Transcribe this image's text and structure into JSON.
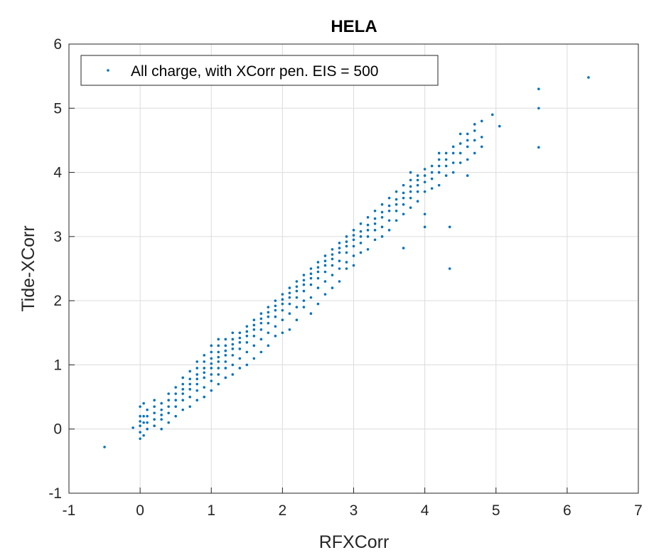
{
  "chart_data": {
    "type": "scatter",
    "title": "HELA",
    "xlabel": "RFXCorr",
    "ylabel": "Tide-XCorr",
    "xlim": [
      -1,
      7
    ],
    "ylim": [
      -1,
      6
    ],
    "xticks": [
      "-1",
      "0",
      "1",
      "2",
      "3",
      "4",
      "5",
      "6",
      "7"
    ],
    "yticks": [
      "-1",
      "0",
      "1",
      "2",
      "3",
      "4",
      "5",
      "6"
    ],
    "grid": true,
    "legend": {
      "placement": "top-left",
      "entries": [
        "All charge, with XCorr pen. EIS = 500"
      ]
    },
    "series": [
      {
        "name": "All charge, with XCorr pen. EIS = 500",
        "color": "#0072BD",
        "columns": [
          [
            0.0,
            [
              -0.15,
              -0.05,
              0.05,
              0.12,
              0.2,
              0.35
            ]
          ],
          [
            0.05,
            [
              -0.1,
              0.1,
              0.2,
              0.4
            ]
          ],
          [
            0.1,
            [
              0.0,
              0.1,
              0.2,
              0.3
            ]
          ],
          [
            0.2,
            [
              0.05,
              0.15,
              0.25,
              0.35,
              0.45
            ]
          ],
          [
            0.3,
            [
              0.0,
              0.15,
              0.22,
              0.3,
              0.4
            ]
          ],
          [
            0.4,
            [
              0.1,
              0.25,
              0.35,
              0.45,
              0.55
            ]
          ],
          [
            0.5,
            [
              0.2,
              0.35,
              0.45,
              0.55,
              0.65
            ]
          ],
          [
            0.6,
            [
              0.3,
              0.45,
              0.55,
              0.62,
              0.7,
              0.8
            ]
          ],
          [
            0.7,
            [
              0.35,
              0.5,
              0.62,
              0.7,
              0.78,
              0.9
            ]
          ],
          [
            0.8,
            [
              0.45,
              0.6,
              0.7,
              0.78,
              0.85,
              0.95,
              1.05
            ]
          ],
          [
            0.9,
            [
              0.5,
              0.65,
              0.8,
              0.88,
              0.95,
              1.05,
              1.15
            ]
          ],
          [
            1.0,
            [
              0.6,
              0.75,
              0.85,
              0.95,
              1.02,
              1.1,
              1.2,
              1.3
            ]
          ],
          [
            1.1,
            [
              0.7,
              0.85,
              0.95,
              1.05,
              1.12,
              1.2,
              1.3,
              1.4
            ]
          ],
          [
            1.2,
            [
              0.8,
              0.95,
              1.05,
              1.15,
              1.22,
              1.3,
              1.4
            ]
          ],
          [
            1.3,
            [
              0.85,
              1.0,
              1.15,
              1.25,
              1.32,
              1.4,
              1.5
            ]
          ],
          [
            1.4,
            [
              0.95,
              1.1,
              1.25,
              1.35,
              1.42,
              1.5
            ]
          ],
          [
            1.5,
            [
              1.0,
              1.2,
              1.35,
              1.45,
              1.52,
              1.6
            ]
          ],
          [
            1.6,
            [
              1.1,
              1.3,
              1.45,
              1.55,
              1.62,
              1.7
            ]
          ],
          [
            1.7,
            [
              1.2,
              1.4,
              1.55,
              1.65,
              1.72,
              1.8
            ]
          ],
          [
            1.8,
            [
              1.3,
              1.5,
              1.65,
              1.75,
              1.82,
              1.9
            ]
          ],
          [
            1.9,
            [
              1.45,
              1.6,
              1.75,
              1.85,
              1.92,
              2.0
            ]
          ],
          [
            2.0,
            [
              1.5,
              1.7,
              1.85,
              1.95,
              2.02,
              2.1
            ]
          ],
          [
            2.1,
            [
              1.55,
              1.8,
              1.95,
              2.05,
              2.12,
              2.2
            ]
          ],
          [
            2.2,
            [
              1.7,
              1.9,
              2.05,
              2.15,
              2.22,
              2.3
            ]
          ],
          [
            2.3,
            [
              1.9,
              2.0,
              2.15,
              2.25,
              2.32,
              2.4
            ]
          ],
          [
            2.4,
            [
              1.8,
              2.05,
              2.25,
              2.35,
              2.42,
              2.5
            ]
          ],
          [
            2.5,
            [
              1.95,
              2.2,
              2.35,
              2.45,
              2.52,
              2.6
            ]
          ],
          [
            2.6,
            [
              2.1,
              2.3,
              2.45,
              2.55,
              2.62,
              2.7
            ]
          ],
          [
            2.7,
            [
              2.2,
              2.4,
              2.55,
              2.65,
              2.72,
              2.8
            ]
          ],
          [
            2.8,
            [
              2.3,
              2.5,
              2.62,
              2.75,
              2.82,
              2.9
            ]
          ],
          [
            2.9,
            [
              2.5,
              2.6,
              2.75,
              2.85,
              2.92,
              3.0
            ]
          ],
          [
            3.0,
            [
              2.55,
              2.7,
              2.85,
              2.95,
              3.02,
              3.1
            ]
          ],
          [
            3.1,
            [
              2.75,
              2.9,
              3.0,
              3.08,
              3.2
            ]
          ],
          [
            3.2,
            [
              2.8,
              3.0,
              3.1,
              3.18,
              3.3
            ]
          ],
          [
            3.3,
            [
              2.95,
              3.1,
              3.2,
              3.28,
              3.4
            ]
          ],
          [
            3.4,
            [
              3.0,
              3.15,
              3.3,
              3.38,
              3.5
            ]
          ],
          [
            3.5,
            [
              3.1,
              3.25,
              3.4,
              3.48,
              3.6
            ]
          ],
          [
            3.6,
            [
              3.25,
              3.4,
              3.5,
              3.58,
              3.7
            ]
          ],
          [
            3.7,
            [
              2.82,
              3.35,
              3.5,
              3.6,
              3.68,
              3.8
            ]
          ],
          [
            3.8,
            [
              3.45,
              3.6,
              3.7,
              3.78,
              3.88,
              4.0
            ]
          ],
          [
            3.9,
            [
              3.55,
              3.7,
              3.8,
              3.88,
              3.95
            ]
          ],
          [
            4.0,
            [
              3.15,
              3.35,
              3.7,
              3.85,
              3.95,
              4.05
            ]
          ],
          [
            4.1,
            [
              3.75,
              3.9,
              4.0,
              4.1
            ]
          ],
          [
            4.2,
            [
              3.8,
              4.0,
              4.1,
              4.2,
              4.3
            ]
          ],
          [
            4.3,
            [
              3.95,
              4.1,
              4.2,
              4.3
            ]
          ],
          [
            4.4,
            [
              4.0,
              4.15,
              4.3,
              4.4
            ]
          ],
          [
            4.5,
            [
              4.15,
              4.3,
              4.45,
              4.6
            ]
          ],
          [
            4.6,
            [
              3.95,
              4.2,
              4.4,
              4.5,
              4.6
            ]
          ],
          [
            4.7,
            [
              4.3,
              4.5,
              4.65,
              4.75
            ]
          ],
          [
            4.8,
            [
              4.4,
              4.55,
              4.8
            ]
          ]
        ],
        "outliers": [
          [
            6.3,
            5.48
          ],
          [
            5.6,
            5.3
          ],
          [
            5.6,
            5.0
          ],
          [
            5.6,
            4.39
          ],
          [
            4.95,
            4.9
          ],
          [
            5.05,
            4.72
          ],
          [
            4.35,
            3.15
          ],
          [
            4.35,
            2.5
          ],
          [
            -0.5,
            -0.28
          ],
          [
            -0.1,
            0.02
          ]
        ]
      }
    ]
  }
}
